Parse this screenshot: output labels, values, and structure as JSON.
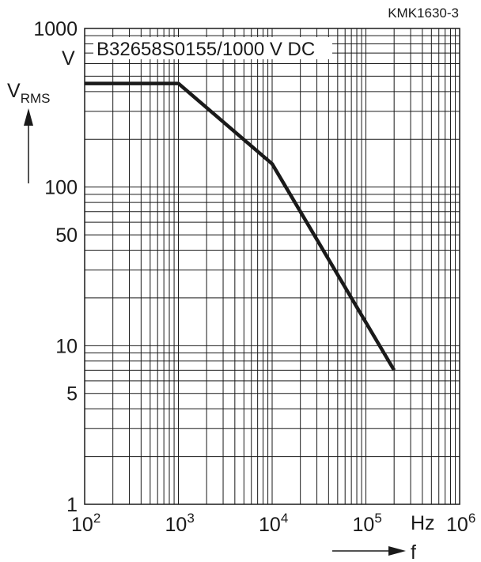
{
  "doc_id": "KMK1630-3",
  "chart_data": {
    "type": "line",
    "title": "B32658S0155/1000 V DC",
    "xscale": "log",
    "yscale": "log",
    "xlim": [
      100,
      1000000
    ],
    "ylim": [
      1,
      1000
    ],
    "grid": true,
    "xlabel": "f",
    "xunit": "Hz",
    "ylabel_main": "V",
    "ylabel_sub": "RMS",
    "yunit": "V",
    "x_ticks": [
      {
        "base": "10",
        "exp": "2"
      },
      {
        "base": "10",
        "exp": "3"
      },
      {
        "base": "10",
        "exp": "4"
      },
      {
        "base": "10",
        "exp": "5"
      },
      {
        "base": "10",
        "exp": "6"
      }
    ],
    "y_ticks": [
      "1",
      "5",
      "10",
      "50",
      "100",
      "1000"
    ],
    "colors": {
      "series": "#1a1a1a",
      "grid": "#1a1a1a"
    },
    "series": [
      {
        "x": [
          100,
          1000,
          10000,
          200000
        ],
        "y": [
          450,
          450,
          140,
          7
        ]
      }
    ]
  }
}
